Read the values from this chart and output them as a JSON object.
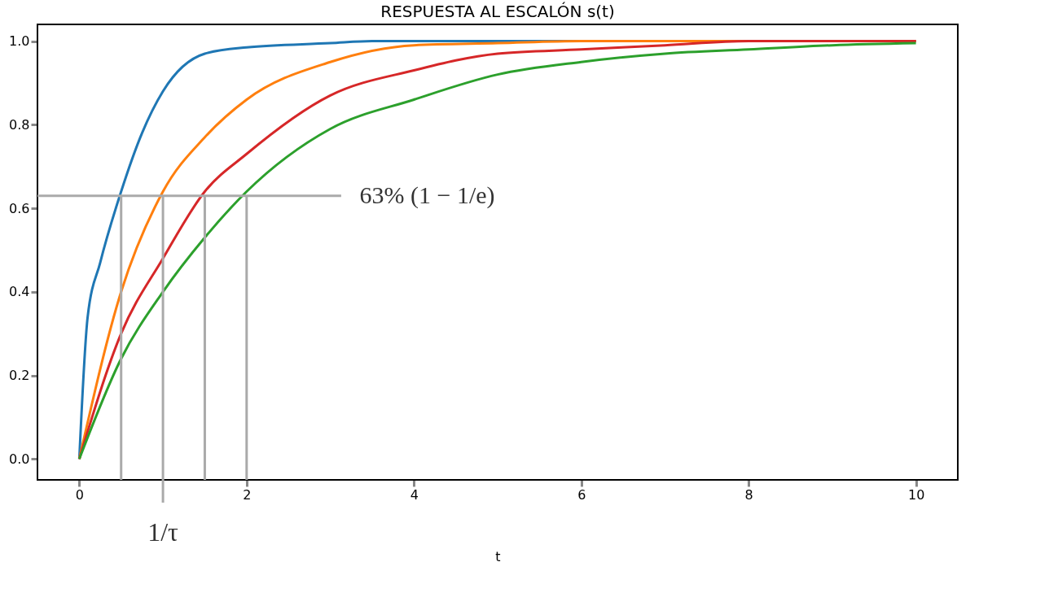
{
  "chart_data": {
    "type": "line",
    "title": "RESPUESTA AL ESCALÓN s(t)",
    "xlabel": "t",
    "series": [
      {
        "color": "#1f77b4",
        "x": [
          0,
          0.1,
          0.25,
          0.5,
          0.75,
          1,
          1.5,
          2,
          3,
          3.5,
          5,
          10
        ],
        "values": [
          0,
          0.34,
          0.47,
          0.64,
          0.78,
          0.88,
          0.97,
          0.985,
          0.995,
          1.0,
          1.0,
          1.0
        ]
      },
      {
        "color": "#ff7f0e",
        "x": [
          0,
          0.5,
          1,
          1.5,
          2,
          3,
          4,
          5,
          6,
          8,
          10
        ],
        "values": [
          0,
          0.4,
          0.64,
          0.77,
          0.86,
          0.95,
          0.99,
          0.995,
          1.0,
          1.0,
          1.0
        ]
      },
      {
        "color": "#d62728",
        "x": [
          0,
          0.5,
          1,
          1.5,
          2,
          3,
          4,
          5,
          6,
          7,
          8,
          10
        ],
        "values": [
          0,
          0.3,
          0.48,
          0.64,
          0.73,
          0.87,
          0.93,
          0.97,
          0.98,
          0.99,
          1.0,
          1.0
        ]
      },
      {
        "color": "#2ca02c",
        "x": [
          0,
          0.5,
          1,
          1.5,
          2,
          3,
          4,
          5,
          6,
          7,
          8,
          9,
          10
        ],
        "values": [
          0,
          0.24,
          0.4,
          0.53,
          0.64,
          0.79,
          0.86,
          0.92,
          0.95,
          0.97,
          0.98,
          0.99,
          0.995
        ]
      }
    ],
    "xlim": [
      -0.5,
      10.5
    ],
    "xticks": [
      0,
      2,
      4,
      6,
      8,
      10
    ],
    "ylim": [
      -0.05,
      1.04
    ],
    "yticks": [
      {
        "value": 0,
        "label": "0.0"
      },
      0.2,
      0.4,
      0.6,
      0.8,
      {
        "value": 1,
        "label": "1.0"
      }
    ],
    "ref_lines": [
      {
        "axis": "y",
        "value": 0.63,
        "label": "63% (1 − 1/e)",
        "color": "#aaaaaa"
      },
      {
        "axis": "x",
        "value": 0.5,
        "label": null,
        "color": "#aaaaaa"
      },
      {
        "axis": "x",
        "value": 1,
        "label": "1/τ",
        "color": "#aaaaaa"
      },
      {
        "axis": "x",
        "value": 1.5,
        "label": null,
        "color": "#aaaaaa"
      },
      {
        "axis": "x",
        "value": 2,
        "label": null,
        "color": "#aaaaaa"
      }
    ],
    "grid": false,
    "marker": "none",
    "line_style": "solid"
  }
}
